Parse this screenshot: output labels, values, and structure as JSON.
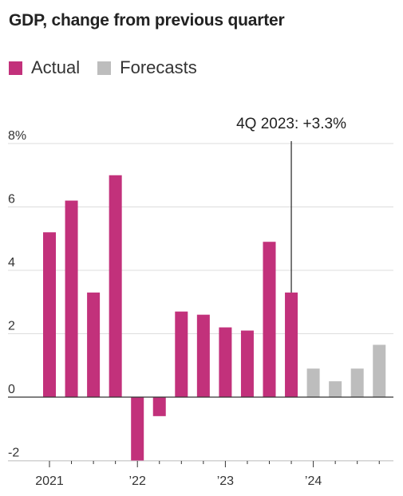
{
  "title": "GDP, change from previous quarter",
  "legend": {
    "actual_label": "Actual",
    "forecast_label": "Forecasts"
  },
  "colors": {
    "actual": "#c2317b",
    "forecast": "#bdbdbd",
    "grid": "#dddddd",
    "axis": "#333333"
  },
  "chart_data": {
    "type": "bar",
    "title": "GDP, change from previous quarter",
    "xlabel": "",
    "ylabel": "",
    "ylim": [
      -2,
      8
    ],
    "grid": true,
    "legend_placement": "top-left",
    "y_ticks": [
      8,
      6,
      4,
      2,
      0,
      -2
    ],
    "y_tick_labels": [
      "8%",
      "6",
      "4",
      "2",
      "0",
      "-2"
    ],
    "x_tick_labels": [
      "2021",
      "’22",
      "’23",
      "’24"
    ],
    "categories": [
      "1Q 2021",
      "2Q 2021",
      "3Q 2021",
      "4Q 2021",
      "1Q 2022",
      "2Q 2022",
      "3Q 2022",
      "4Q 2022",
      "1Q 2023",
      "2Q 2023",
      "3Q 2023",
      "4Q 2023",
      "1Q 2024",
      "2Q 2024",
      "3Q 2024",
      "4Q 2024"
    ],
    "series": [
      {
        "name": "Actual",
        "values": [
          5.2,
          6.2,
          3.3,
          7.0,
          -2.0,
          -0.6,
          2.7,
          2.6,
          2.2,
          2.1,
          4.9,
          3.3,
          null,
          null,
          null,
          null
        ]
      },
      {
        "name": "Forecasts",
        "values": [
          null,
          null,
          null,
          null,
          null,
          null,
          null,
          null,
          null,
          null,
          null,
          null,
          0.9,
          0.5,
          0.9,
          1.65
        ]
      }
    ],
    "annotations": [
      {
        "category": "4Q 2023",
        "text": "4Q 2023: +3.3%"
      }
    ]
  }
}
